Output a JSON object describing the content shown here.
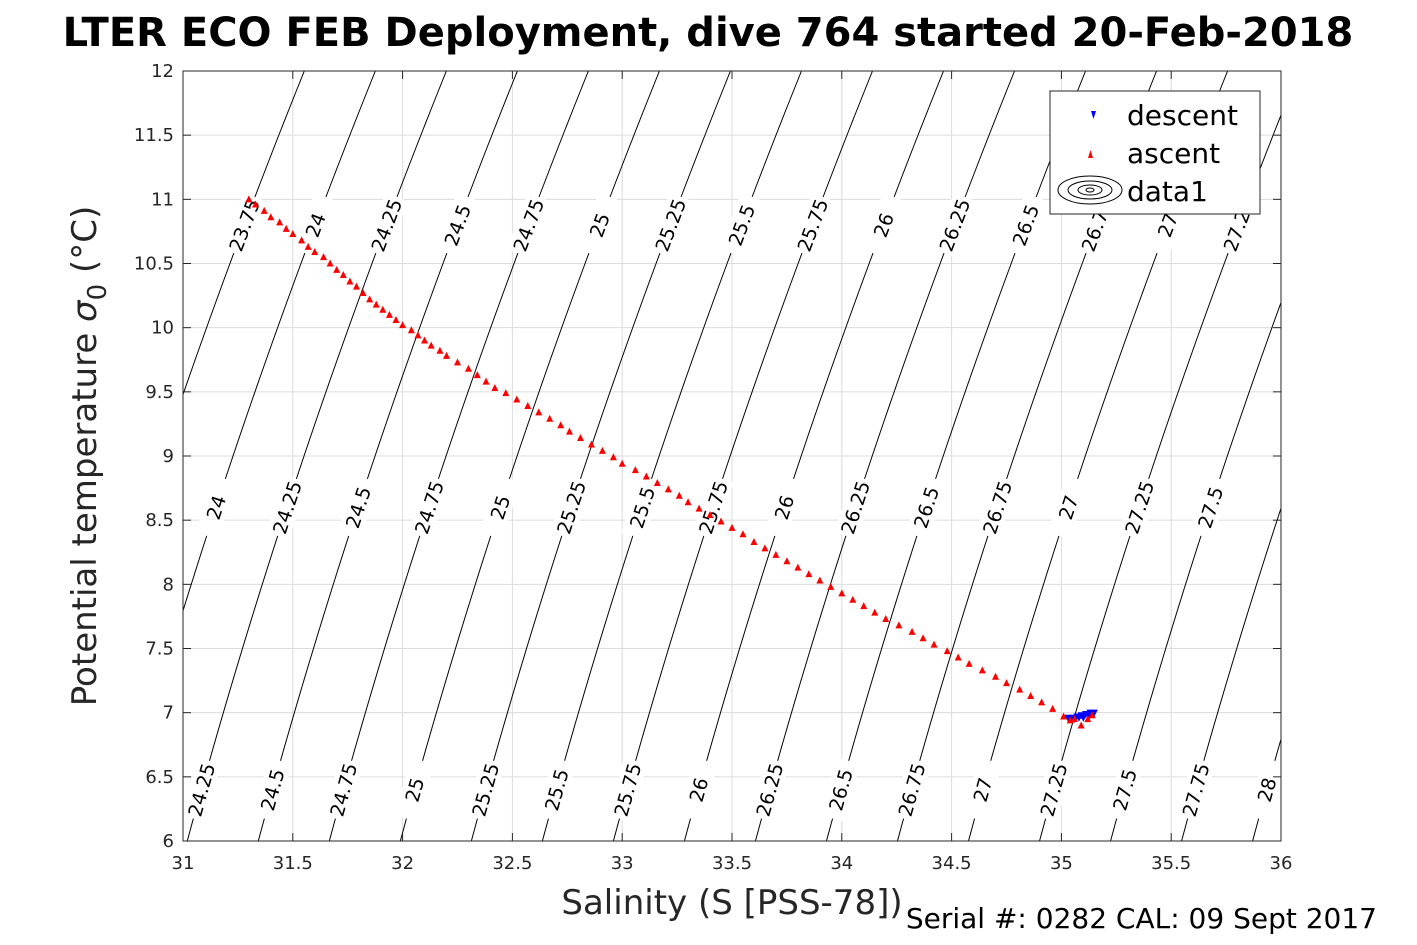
{
  "chart_data": {
    "type": "scatter",
    "title": "LTER ECO FEB Deployment, dive 764 started 20-Feb-2018",
    "xlabel": "Salinity (S [PSS-78])",
    "ylabel_main": "Potential temperature ",
    "ylabel_sigma": "σ",
    "ylabel_sub": "0",
    "ylabel_unit": " (°C)",
    "xlim": [
      31,
      36
    ],
    "ylim": [
      6,
      12
    ],
    "x_ticks": [
      {
        "value": 31,
        "label": "31"
      },
      {
        "value": 31.5,
        "label": "31.5"
      },
      {
        "value": 32,
        "label": "32"
      },
      {
        "value": 32.5,
        "label": "32.5"
      },
      {
        "value": 33,
        "label": "33"
      },
      {
        "value": 33.5,
        "label": "33.5"
      },
      {
        "value": 34,
        "label": "34"
      },
      {
        "value": 34.5,
        "label": "34.5"
      },
      {
        "value": 35,
        "label": "35"
      },
      {
        "value": 35.5,
        "label": "35.5"
      },
      {
        "value": 36,
        "label": "36"
      }
    ],
    "y_ticks": [
      {
        "value": 6,
        "label": "6"
      },
      {
        "value": 6.5,
        "label": "6.5"
      },
      {
        "value": 7,
        "label": "7"
      },
      {
        "value": 7.5,
        "label": "7.5"
      },
      {
        "value": 8,
        "label": "8"
      },
      {
        "value": 8.5,
        "label": "8.5"
      },
      {
        "value": 9,
        "label": "9"
      },
      {
        "value": 9.5,
        "label": "9.5"
      },
      {
        "value": 10,
        "label": "10"
      },
      {
        "value": 10.5,
        "label": "10.5"
      },
      {
        "value": 11,
        "label": "11"
      },
      {
        "value": 11.5,
        "label": "11.5"
      },
      {
        "value": 12,
        "label": "12"
      }
    ],
    "grid": true,
    "density_contours": {
      "levels": [
        {
          "value": 23.75,
          "label": "23.75"
        },
        {
          "value": 24,
          "label": "24"
        },
        {
          "value": 24.25,
          "label": "24.25"
        },
        {
          "value": 24.5,
          "label": "24.5"
        },
        {
          "value": 24.75,
          "label": "24.75"
        },
        {
          "value": 25,
          "label": "25"
        },
        {
          "value": 25.25,
          "label": "25.25"
        },
        {
          "value": 25.5,
          "label": "25.5"
        },
        {
          "value": 25.75,
          "label": "25.75"
        },
        {
          "value": 26,
          "label": "26"
        },
        {
          "value": 26.25,
          "label": "26.25"
        },
        {
          "value": 26.5,
          "label": "26.5"
        },
        {
          "value": 26.75,
          "label": "26.75"
        },
        {
          "value": 27,
          "label": "27"
        },
        {
          "value": 27.25,
          "label": "27.25"
        },
        {
          "value": 27.5,
          "label": "27.5"
        },
        {
          "value": 27.75,
          "label": "27.75"
        },
        {
          "value": 28,
          "label": "28"
        }
      ],
      "color": "#000000"
    },
    "series": [
      {
        "name": "descent",
        "marker": "triangle-down",
        "color": "#0000ff",
        "x": [
          35.03,
          35.05,
          35.07,
          35.08,
          35.09,
          35.1,
          35.11,
          35.12,
          35.13,
          35.14,
          35.15,
          35.06,
          35.1,
          35.13
        ],
        "y": [
          6.96,
          6.96,
          6.97,
          6.96,
          6.98,
          6.97,
          6.99,
          6.98,
          7.0,
          6.99,
          7.0,
          6.95,
          6.96,
          6.98
        ]
      },
      {
        "name": "ascent",
        "marker": "triangle-up",
        "color": "#ff0000",
        "x": [
          31.3,
          31.33,
          31.37,
          31.4,
          31.44,
          31.47,
          31.5,
          31.54,
          31.57,
          31.6,
          31.64,
          31.67,
          31.7,
          31.73,
          31.76,
          31.79,
          31.82,
          31.85,
          31.88,
          31.91,
          31.94,
          31.97,
          32.0,
          32.04,
          32.07,
          32.1,
          32.13,
          32.17,
          32.2,
          32.25,
          32.3,
          32.34,
          32.38,
          32.42,
          32.47,
          32.52,
          32.57,
          32.62,
          32.67,
          32.72,
          32.76,
          32.81,
          32.86,
          32.91,
          32.96,
          33.0,
          33.06,
          33.11,
          33.16,
          33.21,
          33.26,
          33.3,
          33.35,
          33.4,
          33.45,
          33.5,
          33.55,
          33.6,
          33.65,
          33.7,
          33.75,
          33.8,
          33.85,
          33.9,
          33.95,
          34.0,
          34.05,
          34.1,
          34.15,
          34.2,
          34.26,
          34.32,
          34.37,
          34.42,
          34.48,
          34.53,
          34.58,
          34.64,
          34.7,
          34.75,
          34.81,
          34.86,
          34.91,
          34.96,
          35.01,
          35.04,
          35.06,
          35.09,
          35.12,
          35.14
        ],
        "y": [
          11.0,
          10.96,
          10.91,
          10.86,
          10.82,
          10.77,
          10.73,
          10.68,
          10.63,
          10.59,
          10.55,
          10.5,
          10.45,
          10.41,
          10.36,
          10.32,
          10.27,
          10.22,
          10.18,
          10.14,
          10.1,
          10.06,
          10.02,
          9.98,
          9.94,
          9.9,
          9.86,
          9.82,
          9.78,
          9.73,
          9.68,
          9.63,
          9.58,
          9.53,
          9.49,
          9.44,
          9.39,
          9.34,
          9.29,
          9.24,
          9.19,
          9.14,
          9.09,
          9.04,
          8.99,
          8.94,
          8.89,
          8.84,
          8.79,
          8.74,
          8.69,
          8.64,
          8.59,
          8.54,
          8.49,
          8.44,
          8.39,
          8.33,
          8.28,
          8.23,
          8.18,
          8.13,
          8.08,
          8.03,
          7.98,
          7.93,
          7.88,
          7.83,
          7.78,
          7.73,
          7.68,
          7.63,
          7.58,
          7.53,
          7.48,
          7.43,
          7.38,
          7.33,
          7.28,
          7.23,
          7.18,
          7.13,
          7.08,
          7.03,
          6.97,
          6.94,
          6.95,
          6.9,
          6.95,
          6.98
        ]
      }
    ],
    "legend": {
      "position": "top-right",
      "entries": [
        {
          "label": "descent",
          "kind": "marker"
        },
        {
          "label": "ascent",
          "kind": "marker"
        },
        {
          "label": "data1",
          "kind": "contour"
        }
      ]
    }
  },
  "footer": {
    "text": "Serial #: 0282  CAL: 09 Sept 2017"
  }
}
